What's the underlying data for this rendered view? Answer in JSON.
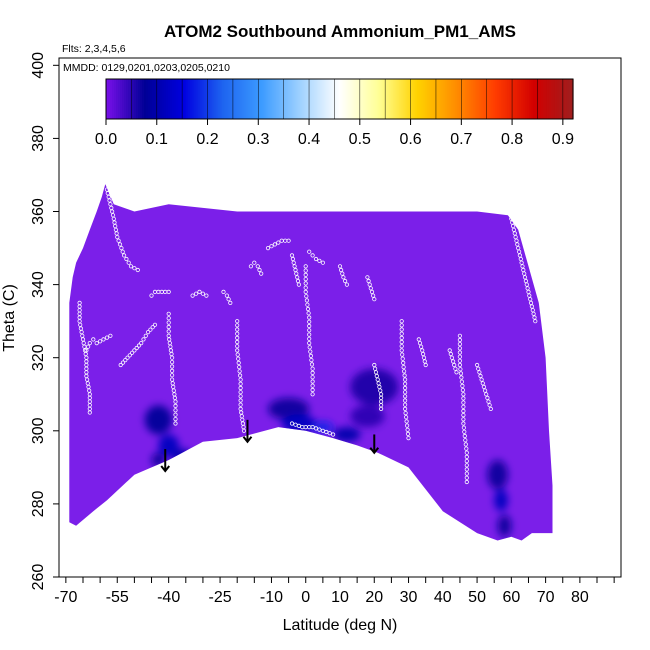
{
  "chart_data": {
    "type": "heatmap",
    "title": "ATOM2 Southbound Ammonium_PM1_AMS",
    "flights_note": "Flts: 2,3,4,5,6",
    "dates_note": "MMDD: 0129,0201,0203,0205,0210",
    "xlabel": "Latitude (deg N)",
    "ylabel": "Theta (C)",
    "xlim": [
      -72,
      92
    ],
    "ylim": [
      260,
      402
    ],
    "x_tick_labels": [
      "-70",
      "-55",
      "-40",
      "-25",
      "-10",
      "0",
      "10",
      "20",
      "30",
      "40",
      "50",
      "60",
      "70",
      "80"
    ],
    "x_minor_ticks": [
      -70,
      -65,
      -60,
      -55,
      -50,
      -45,
      -40,
      -35,
      -30,
      -25,
      -20,
      -15,
      -10,
      -5,
      0,
      5,
      10,
      15,
      20,
      25,
      30,
      35,
      40,
      45,
      50,
      55,
      60,
      65,
      70,
      75,
      80,
      85,
      90
    ],
    "y_ticks": [
      260,
      280,
      300,
      320,
      340,
      360,
      380,
      400
    ],
    "colorbar": {
      "min": 0.0,
      "max": 0.92,
      "tick_values": [
        0.0,
        0.1,
        0.2,
        0.3,
        0.4,
        0.5,
        0.6,
        0.7,
        0.8,
        0.9
      ],
      "tick_labels": [
        "0.0",
        "0.1",
        "0.2",
        "0.3",
        "0.4",
        "0.5",
        "0.6",
        "0.7",
        "0.8",
        "0.9"
      ],
      "colors": [
        "#7a10ea",
        "#000096",
        "#0000e0",
        "#1e64f0",
        "#3c9bff",
        "#a0d2ff",
        "#ffffff",
        "#ffff96",
        "#ffd200",
        "#ff8c00",
        "#ff3c00",
        "#d20000",
        "#a01e1e"
      ]
    },
    "background_value": 0.02,
    "field_color": "#7b1fe9",
    "domain_boundary": [
      [
        -69,
        335
      ],
      [
        -68,
        342
      ],
      [
        -67,
        346
      ],
      [
        -65,
        350
      ],
      [
        -63,
        355
      ],
      [
        -61,
        360
      ],
      [
        -59.5,
        364
      ],
      [
        -58.5,
        367.5
      ],
      [
        -56,
        362
      ],
      [
        -50,
        360
      ],
      [
        -40,
        362
      ],
      [
        -30,
        361
      ],
      [
        -20,
        360
      ],
      [
        -10,
        360
      ],
      [
        0,
        360
      ],
      [
        10,
        360
      ],
      [
        20,
        360
      ],
      [
        30,
        360
      ],
      [
        40,
        360
      ],
      [
        50,
        360
      ],
      [
        59,
        359
      ],
      [
        62,
        355
      ],
      [
        65,
        345
      ],
      [
        68,
        335
      ],
      [
        70,
        320
      ],
      [
        71,
        300
      ],
      [
        72,
        285
      ],
      [
        72,
        272
      ],
      [
        66,
        272
      ],
      [
        63,
        270
      ],
      [
        60,
        271
      ],
      [
        56,
        270
      ],
      [
        50,
        272
      ],
      [
        40,
        278
      ],
      [
        30,
        290
      ],
      [
        21,
        294
      ],
      [
        15,
        296
      ],
      [
        8,
        298
      ],
      [
        0,
        300
      ],
      [
        -8,
        301
      ],
      [
        -20,
        298
      ],
      [
        -30,
        297
      ],
      [
        -40,
        292
      ],
      [
        -50,
        288
      ],
      [
        -58,
        281
      ],
      [
        -62,
        278
      ],
      [
        -67,
        274
      ],
      [
        -69,
        275
      ]
    ],
    "enhancements": [
      {
        "lat": -43,
        "theta": 303,
        "value": 0.08,
        "rx": 4,
        "ry": 4
      },
      {
        "lat": -40,
        "theta": 296,
        "value": 0.12,
        "rx": 3,
        "ry": 3
      },
      {
        "lat": -36,
        "theta": 293,
        "value": 0.1,
        "rx": 3,
        "ry": 2
      },
      {
        "lat": -43,
        "theta": 292,
        "value": 0.07,
        "rx": 2,
        "ry": 2
      },
      {
        "lat": -5,
        "theta": 306,
        "value": 0.07,
        "rx": 6,
        "ry": 3
      },
      {
        "lat": -2,
        "theta": 302,
        "value": 0.12,
        "rx": 5,
        "ry": 2.5
      },
      {
        "lat": 5,
        "theta": 301,
        "value": 0.18,
        "rx": 3,
        "ry": 1.5
      },
      {
        "lat": 12,
        "theta": 299,
        "value": 0.1,
        "rx": 4,
        "ry": 2
      },
      {
        "lat": 20,
        "theta": 312,
        "value": 0.06,
        "rx": 7,
        "ry": 5
      },
      {
        "lat": 18,
        "theta": 304,
        "value": 0.05,
        "rx": 5,
        "ry": 3
      },
      {
        "lat": 56,
        "theta": 288,
        "value": 0.07,
        "rx": 3,
        "ry": 4
      },
      {
        "lat": 57,
        "theta": 281,
        "value": 0.12,
        "rx": 2,
        "ry": 3
      },
      {
        "lat": 58,
        "theta": 274,
        "value": 0.07,
        "rx": 2,
        "ry": 3
      }
    ],
    "sample_tracks": [
      {
        "pts": [
          [
            -58,
            366
          ],
          [
            -57,
            362
          ],
          [
            -56,
            358
          ],
          [
            -55,
            353
          ],
          [
            -53,
            348
          ],
          [
            -51,
            345
          ],
          [
            -49,
            344
          ]
        ]
      },
      {
        "pts": [
          [
            -64,
            322
          ],
          [
            -63,
            324
          ],
          [
            -62,
            325
          ],
          [
            -61,
            324
          ],
          [
            -59,
            325
          ],
          [
            -57,
            326
          ]
        ]
      },
      {
        "pts": [
          [
            -54,
            318
          ],
          [
            -52,
            320
          ],
          [
            -50,
            322
          ],
          [
            -48,
            324
          ],
          [
            -46,
            327
          ],
          [
            -44,
            329
          ]
        ]
      },
      {
        "pts": [
          [
            -45,
            337
          ],
          [
            -44,
            338
          ],
          [
            -42,
            338
          ],
          [
            -40,
            338
          ]
        ]
      },
      {
        "pts": [
          [
            -33,
            337
          ],
          [
            -31,
            338
          ],
          [
            -29,
            337
          ]
        ]
      },
      {
        "pts": [
          [
            -24,
            338
          ],
          [
            -23,
            337
          ],
          [
            -22,
            335
          ]
        ]
      },
      {
        "pts": [
          [
            -16,
            345
          ],
          [
            -15,
            346
          ],
          [
            -14,
            345
          ],
          [
            -13,
            343
          ]
        ]
      },
      {
        "pts": [
          [
            -11,
            350
          ],
          [
            -9,
            351
          ],
          [
            -7,
            352
          ],
          [
            -5,
            352
          ]
        ]
      },
      {
        "pts": [
          [
            1,
            349
          ],
          [
            2,
            348
          ],
          [
            3,
            347
          ],
          [
            5,
            346
          ]
        ]
      },
      {
        "pts": [
          [
            -4,
            348
          ],
          [
            -3,
            344
          ],
          [
            -2,
            340
          ]
        ]
      },
      {
        "pts": [
          [
            10,
            345
          ],
          [
            11,
            342
          ],
          [
            12,
            340
          ]
        ]
      },
      {
        "pts": [
          [
            18,
            342
          ],
          [
            19,
            339
          ],
          [
            20,
            336
          ]
        ]
      },
      {
        "pts": [
          [
            33,
            325
          ],
          [
            34,
            322
          ],
          [
            35,
            318
          ]
        ]
      },
      {
        "pts": [
          [
            42,
            322
          ],
          [
            43,
            319
          ],
          [
            44,
            316
          ]
        ]
      },
      {
        "pts": [
          [
            50,
            318
          ],
          [
            51,
            315
          ],
          [
            52,
            312
          ],
          [
            53,
            309
          ],
          [
            54,
            306
          ]
        ]
      },
      {
        "pts": [
          [
            20,
            318
          ],
          [
            21,
            314
          ],
          [
            22,
            310
          ],
          [
            22,
            306
          ]
        ]
      },
      {
        "pts": [
          [
            -4,
            302
          ],
          [
            -1,
            301
          ],
          [
            2,
            301
          ],
          [
            5,
            300
          ],
          [
            8,
            299
          ]
        ]
      },
      {
        "pts": [
          [
            60,
            358
          ],
          [
            61,
            354
          ],
          [
            62,
            350
          ],
          [
            63,
            346
          ],
          [
            64,
            342
          ],
          [
            65,
            338
          ],
          [
            66,
            334
          ],
          [
            67,
            330
          ]
        ]
      },
      {
        "pts": [
          [
            -66,
            335
          ],
          [
            -66,
            330
          ],
          [
            -65,
            325
          ],
          [
            -64,
            320
          ],
          [
            -64,
            315
          ],
          [
            -63,
            310
          ],
          [
            -63,
            305
          ]
        ]
      },
      {
        "pts": [
          [
            -40,
            332
          ],
          [
            -40,
            326
          ],
          [
            -39,
            320
          ],
          [
            -39,
            314
          ],
          [
            -38,
            308
          ],
          [
            -38,
            302
          ]
        ]
      },
      {
        "pts": [
          [
            0,
            345
          ],
          [
            0,
            338
          ],
          [
            1,
            331
          ],
          [
            1,
            324
          ],
          [
            2,
            317
          ],
          [
            2,
            310
          ]
        ]
      },
      {
        "pts": [
          [
            28,
            330
          ],
          [
            28,
            322
          ],
          [
            29,
            314
          ],
          [
            29,
            306
          ],
          [
            30,
            298
          ]
        ]
      },
      {
        "pts": [
          [
            45,
            326
          ],
          [
            45,
            318
          ],
          [
            46,
            310
          ],
          [
            46,
            302
          ],
          [
            47,
            294
          ],
          [
            47,
            286
          ]
        ]
      },
      {
        "pts": [
          [
            -20,
            330
          ],
          [
            -20,
            322
          ],
          [
            -19,
            314
          ],
          [
            -19,
            306
          ],
          [
            -18,
            300
          ]
        ]
      }
    ],
    "arrows": [
      {
        "lat": -41,
        "theta_top": 295,
        "theta_bottom": 289
      },
      {
        "lat": -17,
        "theta_top": 303,
        "theta_bottom": 297
      },
      {
        "lat": 20,
        "theta_top": 299,
        "theta_bottom": 294
      }
    ]
  }
}
